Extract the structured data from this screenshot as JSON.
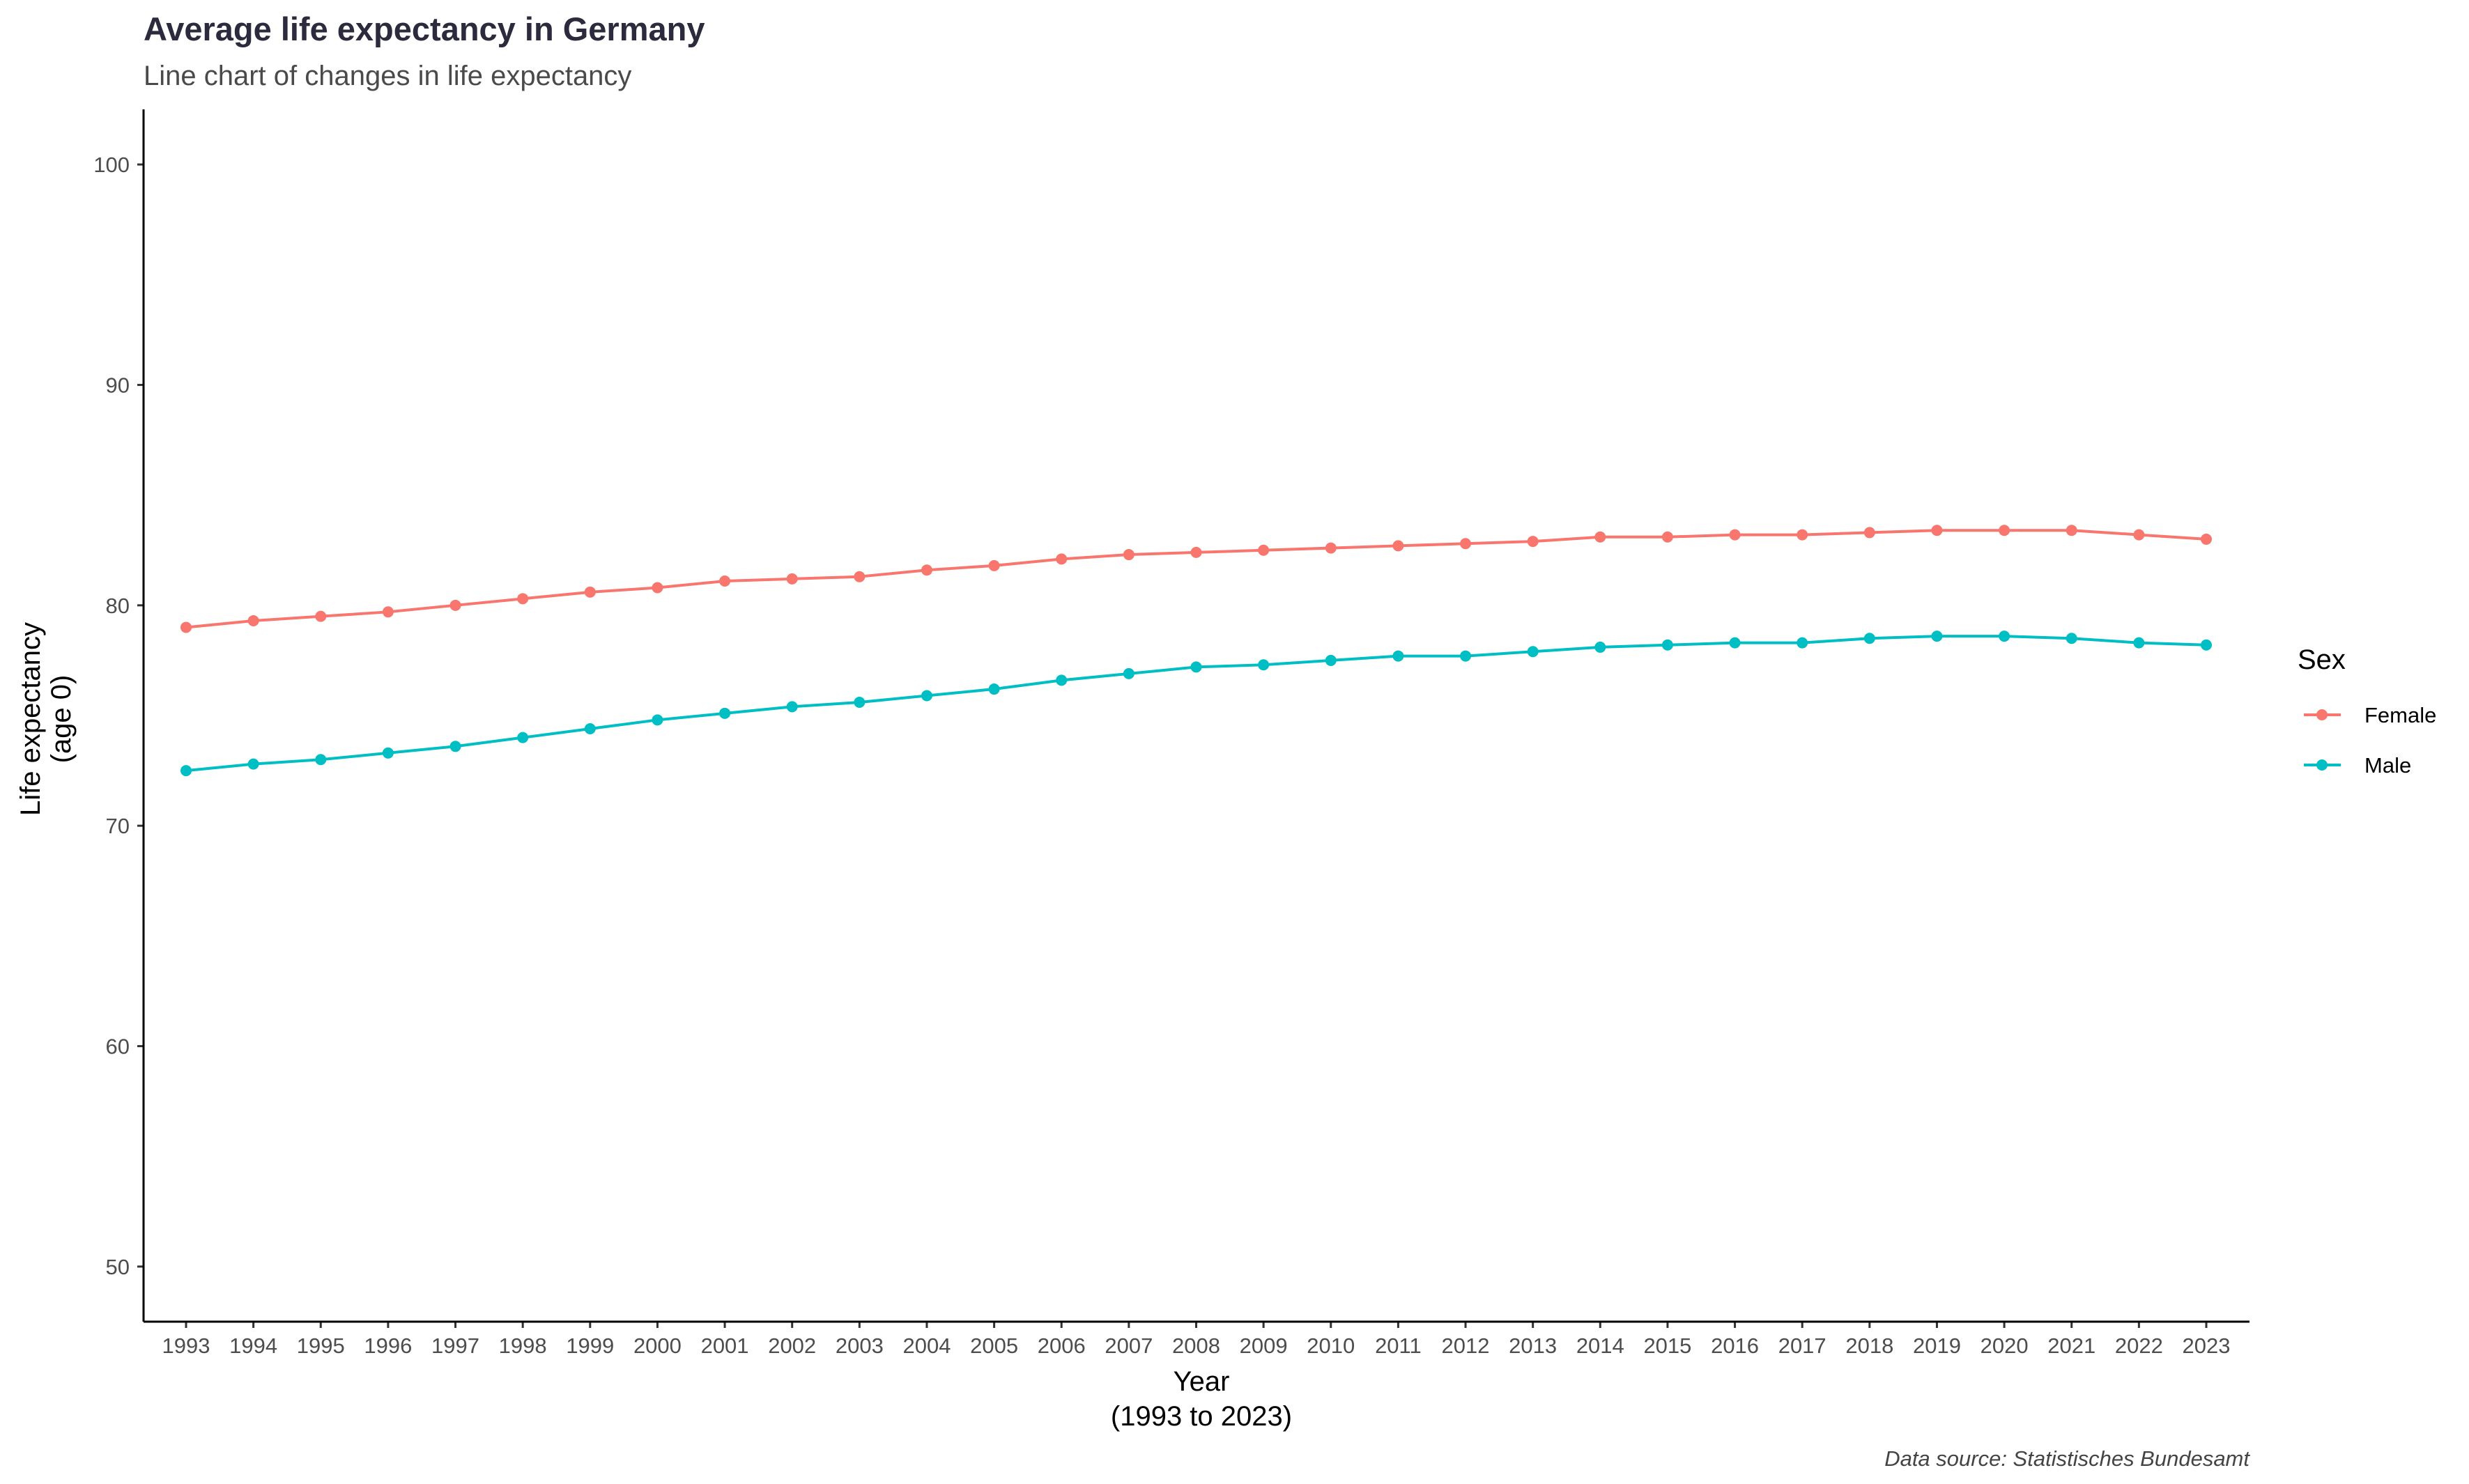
{
  "chart_data": {
    "type": "line",
    "title": "Average life expectancy in Germany",
    "subtitle": "Line chart of changes in life expectancy",
    "xlabel": [
      "Year",
      "(1993 to 2023)"
    ],
    "ylabel": [
      "Life expectancy",
      "(age 0)"
    ],
    "caption": "Data source: Statistisches Bundesamt",
    "x": [
      1993,
      1994,
      1995,
      1996,
      1997,
      1998,
      1999,
      2000,
      2001,
      2002,
      2003,
      2004,
      2005,
      2006,
      2007,
      2008,
      2009,
      2010,
      2011,
      2012,
      2013,
      2014,
      2015,
      2016,
      2017,
      2018,
      2019,
      2020,
      2021,
      2022,
      2023
    ],
    "xticks": [
      "1993",
      "1994",
      "1995",
      "1996",
      "1997",
      "1998",
      "1999",
      "2000",
      "2001",
      "2002",
      "2003",
      "2004",
      "2005",
      "2006",
      "2007",
      "2008",
      "2009",
      "2010",
      "2011",
      "2012",
      "2013",
      "2014",
      "2015",
      "2016",
      "2017",
      "2018",
      "2019",
      "2020",
      "2021",
      "2022",
      "2023"
    ],
    "ylim": [
      47.5,
      102.5
    ],
    "yticks": [
      50,
      60,
      70,
      80,
      90,
      100
    ],
    "grid": false,
    "legend": {
      "title": "Sex",
      "position": "right"
    },
    "series": [
      {
        "name": "Female",
        "color": "#F8766D",
        "values": [
          79.0,
          79.3,
          79.5,
          79.7,
          80.0,
          80.3,
          80.6,
          80.8,
          81.1,
          81.2,
          81.3,
          81.6,
          81.8,
          82.1,
          82.3,
          82.4,
          82.5,
          82.6,
          82.7,
          82.8,
          82.9,
          83.1,
          83.1,
          83.2,
          83.2,
          83.3,
          83.4,
          83.4,
          83.4,
          83.2,
          83.0
        ]
      },
      {
        "name": "Male",
        "color": "#00BFC4",
        "values": [
          72.5,
          72.8,
          73.0,
          73.3,
          73.6,
          74.0,
          74.4,
          74.8,
          75.1,
          75.4,
          75.6,
          75.9,
          76.2,
          76.6,
          76.9,
          77.2,
          77.3,
          77.5,
          77.7,
          77.7,
          77.9,
          78.1,
          78.2,
          78.3,
          78.3,
          78.5,
          78.6,
          78.6,
          78.5,
          78.3,
          78.2
        ]
      }
    ]
  }
}
